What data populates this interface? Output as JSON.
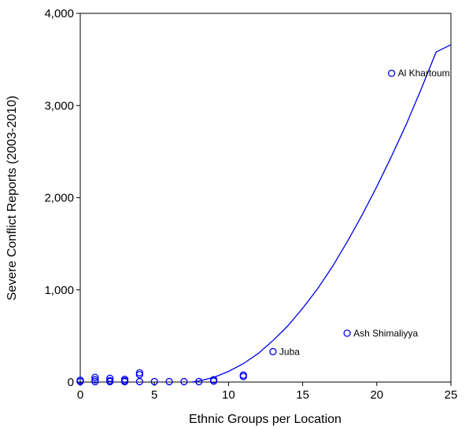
{
  "chart_data": {
    "type": "scatter",
    "title": "",
    "xlabel": "Ethnic Groups per Location",
    "ylabel": "Severe Conflict Reports (2003-2010)",
    "xlim": [
      0,
      25
    ],
    "ylim": [
      0,
      4000
    ],
    "x_ticks": [
      0,
      5,
      10,
      15,
      20,
      25
    ],
    "y_ticks": [
      0,
      1000,
      2000,
      3000,
      4000
    ],
    "x_tick_labels": [
      "0",
      "5",
      "10",
      "15",
      "20",
      "25"
    ],
    "y_tick_labels": [
      "0",
      "1,000",
      "2,000",
      "3,000",
      "4,000"
    ],
    "grid": false,
    "marker_color": "#0000ee",
    "curve_color": "#0000ee",
    "points": [
      {
        "x": 0,
        "y": 5
      },
      {
        "x": 0,
        "y": 20
      },
      {
        "x": 1,
        "y": 5
      },
      {
        "x": 1,
        "y": 25
      },
      {
        "x": 1,
        "y": 50
      },
      {
        "x": 2,
        "y": 5
      },
      {
        "x": 2,
        "y": 15
      },
      {
        "x": 2,
        "y": 40
      },
      {
        "x": 3,
        "y": 5
      },
      {
        "x": 3,
        "y": 15
      },
      {
        "x": 3,
        "y": 30
      },
      {
        "x": 4,
        "y": 5
      },
      {
        "x": 4,
        "y": 80
      },
      {
        "x": 4,
        "y": 100
      },
      {
        "x": 5,
        "y": 5
      },
      {
        "x": 6,
        "y": 5
      },
      {
        "x": 7,
        "y": 5
      },
      {
        "x": 8,
        "y": 5
      },
      {
        "x": 9,
        "y": 10
      },
      {
        "x": 9,
        "y": 25
      },
      {
        "x": 11,
        "y": 60
      },
      {
        "x": 11,
        "y": 75
      },
      {
        "x": 13,
        "y": 330
      },
      {
        "x": 18,
        "y": 530
      },
      {
        "x": 21,
        "y": 3350
      }
    ],
    "annotations": [
      {
        "label": "Al Khartoum",
        "x": 21,
        "y": 3350
      },
      {
        "label": "Ash Shimaliyya",
        "x": 18,
        "y": 530
      },
      {
        "label": "Juba",
        "x": 13,
        "y": 330
      }
    ],
    "fit_curve": {
      "type": "quadratic",
      "x": [
        7.5,
        8,
        9,
        10,
        11,
        12,
        13,
        14,
        15,
        16,
        17,
        18,
        19,
        20,
        21,
        22,
        23,
        24,
        25
      ],
      "y": [
        0,
        12,
        50,
        115,
        200,
        310,
        450,
        610,
        800,
        1010,
        1250,
        1520,
        1810,
        2120,
        2450,
        2800,
        3180,
        3580,
        3660
      ]
    }
  }
}
